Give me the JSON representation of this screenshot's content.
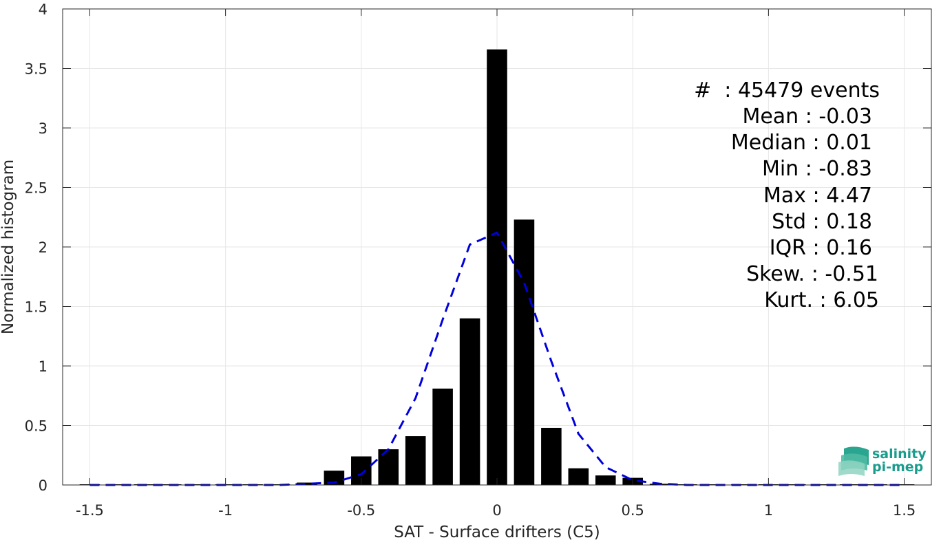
{
  "chart_data": {
    "type": "bar",
    "xlabel": "SAT - Surface drifters (C5)",
    "ylabel": "Normalized histogram",
    "xlim": [
      -1.6,
      1.6
    ],
    "ylim": [
      0,
      4
    ],
    "grid": true,
    "x_ticks": [
      "-1.5",
      "-1",
      "-0.5",
      "0",
      "0.5",
      "1",
      "1.5"
    ],
    "y_ticks": [
      "0",
      "0.5",
      "1",
      "1.5",
      "2",
      "2.5",
      "3",
      "3.5",
      "4"
    ],
    "bar_width": 0.075,
    "bar_color": "#000000",
    "bars": {
      "x": [
        -1.5,
        -1.4,
        -1.3,
        -1.2,
        -1.1,
        -1.0,
        -0.9,
        -0.8,
        -0.7,
        -0.6,
        -0.5,
        -0.4,
        -0.3,
        -0.2,
        -0.1,
        0.0,
        0.1,
        0.2,
        0.3,
        0.4,
        0.5,
        0.6,
        0.7,
        0.8,
        0.9,
        1.0,
        1.1,
        1.2,
        1.3,
        1.4,
        1.5
      ],
      "values": [
        0,
        0,
        0,
        0,
        0,
        0,
        0,
        0,
        0.02,
        0.12,
        0.24,
        0.3,
        0.41,
        0.81,
        1.4,
        3.66,
        2.23,
        0.48,
        0.14,
        0.08,
        0.06,
        0.01,
        0,
        0,
        0,
        0,
        0,
        0,
        0,
        0,
        0
      ]
    },
    "fit_curve": {
      "style": "dashed",
      "color": "#0000dd",
      "x": [
        -1.5,
        -1.4,
        -1.3,
        -1.2,
        -1.1,
        -1.0,
        -0.9,
        -0.8,
        -0.7,
        -0.6,
        -0.5,
        -0.4,
        -0.3,
        -0.2,
        -0.1,
        0.0,
        0.1,
        0.2,
        0.3,
        0.4,
        0.5,
        0.6,
        0.7,
        0.8,
        0.9,
        1.0,
        1.1,
        1.2,
        1.3,
        1.4,
        1.5
      ],
      "values": [
        0,
        0,
        0,
        0,
        0,
        0,
        0,
        0,
        0.01,
        0.02,
        0.09,
        0.3,
        0.73,
        1.39,
        2.02,
        2.12,
        1.7,
        1.04,
        0.43,
        0.15,
        0.04,
        0.01,
        0,
        0,
        0,
        0,
        0,
        0,
        0,
        0,
        0
      ]
    },
    "stats": [
      "#  : 45479 events",
      "Mean : -0.03",
      "Median : 0.01",
      "Min : -0.83",
      "Max : 4.47",
      "Std : 0.18",
      "IQR : 0.16",
      "Skew. : -0.51",
      "Kurt. : 6.05"
    ]
  },
  "logo": {
    "line1": "salinity",
    "line2": "pi-mep",
    "color": "#1a9c8c"
  }
}
